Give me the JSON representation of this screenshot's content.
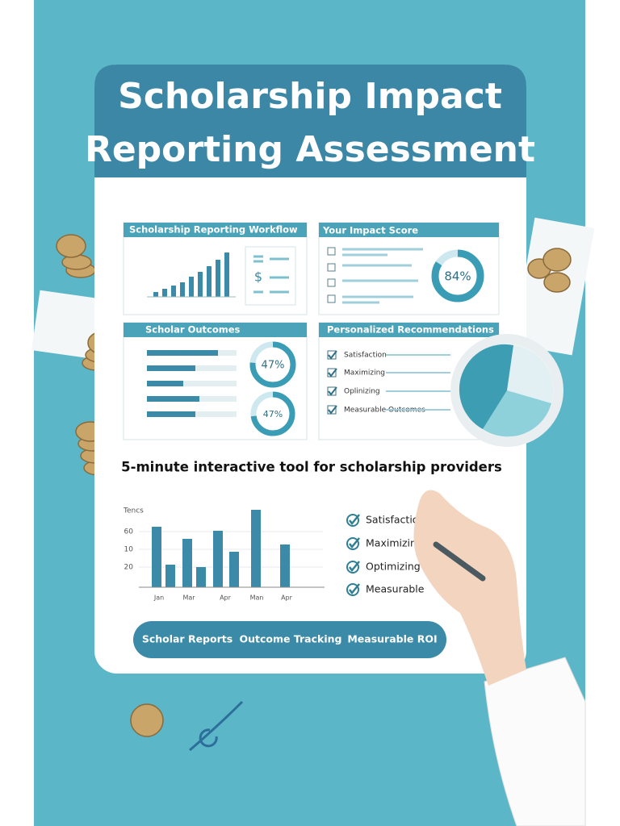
{
  "header": {
    "title_line1": "Scholarship Impact",
    "title_line2": "Reporting Assessment"
  },
  "panels": [
    {
      "title": "Scholarship Reporting Workflow"
    },
    {
      "title": "Your Impact Score",
      "score": "84%"
    },
    {
      "title": "Scholar Outcomes",
      "rings": [
        "47%",
        "47%"
      ]
    },
    {
      "title": "Personalized Recommendations",
      "items": [
        "Satisfaction",
        "Maximizing",
        "Oplinizing",
        "Measurable Outcomes"
      ]
    }
  ],
  "tagline": "5-minute interactive tool for scholarship providers",
  "bottom_chart": {
    "y_title": "Tencs",
    "y_labels": [
      "60",
      "10",
      "20"
    ],
    "x_labels": [
      "Jan",
      "Mar",
      "Apr",
      "Man",
      "Apr"
    ]
  },
  "checklist": [
    "Satisfaction",
    "Maximizing",
    "Optimizing",
    "Measurable"
  ],
  "buttons": [
    "Scholar Reports",
    "Outcome Tracking",
    "Measurable ROI"
  ]
}
